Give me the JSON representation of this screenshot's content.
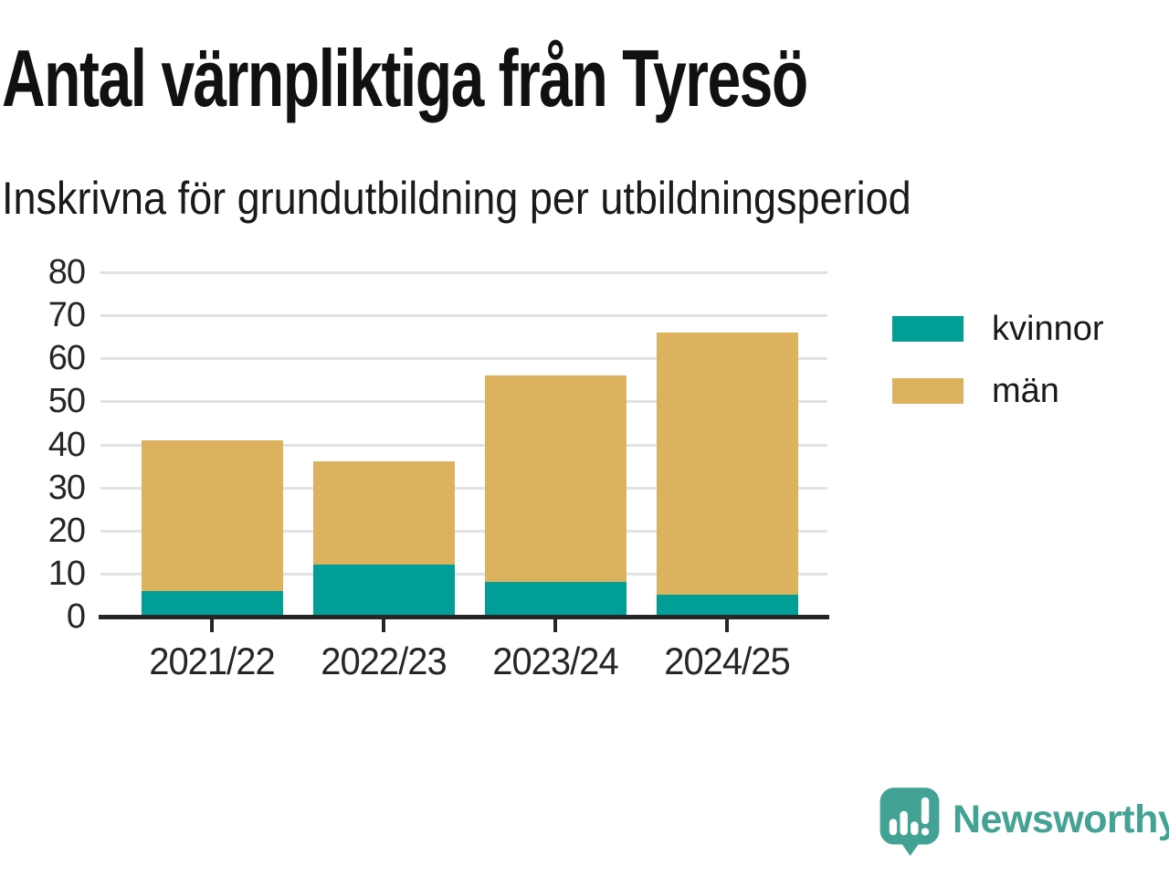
{
  "header": {
    "title": "Antal värnpliktiga från Tyresö",
    "subtitle": "Inskrivna för grundutbildning per utbildningsperiod"
  },
  "chart_data": {
    "type": "bar",
    "stacked": true,
    "title": "Antal värnpliktiga från Tyresö",
    "subtitle": "Inskrivna för grundutbildning per utbildningsperiod",
    "categories": [
      "2021/22",
      "2022/23",
      "2023/24",
      "2024/25"
    ],
    "series": [
      {
        "name": "kvinnor",
        "color": "#009E96",
        "values": [
          6,
          12,
          8,
          5
        ]
      },
      {
        "name": "män",
        "color": "#DDB25F",
        "values": [
          35,
          24,
          48,
          61
        ]
      }
    ],
    "stack_totals": [
      41,
      36,
      56,
      66
    ],
    "xlabel": "",
    "ylabel": "",
    "ylim": [
      0,
      80
    ],
    "ytick_step": 10,
    "grid": "horizontal",
    "legend_position": "right",
    "colors": {
      "gridline": "#e2e2e2",
      "axis": "#262626",
      "tick_text": "#262626"
    }
  },
  "legend": {
    "items": [
      {
        "label": "kvinnor",
        "color": "#009E96"
      },
      {
        "label": "män",
        "color": "#DDB25F"
      }
    ]
  },
  "branding": {
    "name": "Newsworthy",
    "color": "#42A294",
    "icon": "newsworthy-speech-bubble-chart-icon"
  }
}
